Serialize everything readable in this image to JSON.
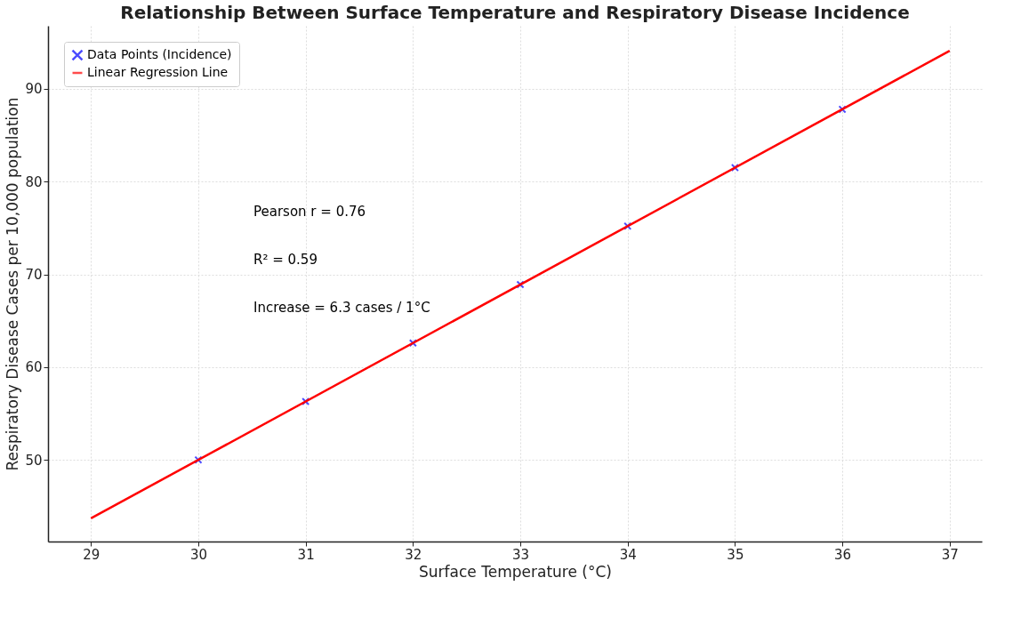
{
  "chart_data": {
    "type": "scatter",
    "title": "Relationship Between Surface Temperature and Respiratory Disease Incidence",
    "xlabel": "Surface Temperature (°C)",
    "ylabel": "Respiratory Disease Cases per 10,000 population",
    "x": [
      30,
      31,
      32,
      33,
      34,
      35,
      36
    ],
    "series": [
      {
        "name": "Data Points (Incidence)",
        "color": "#0000ff",
        "marker": "cross",
        "values": [
          50.0,
          56.3,
          62.6,
          68.9,
          75.2,
          81.5,
          87.8
        ]
      },
      {
        "name": "Linear Regression Line",
        "type": "line",
        "color": "#ff0000",
        "line_style": "solid",
        "x": [
          29,
          37
        ],
        "values": [
          43.7,
          94.1
        ]
      }
    ],
    "annotations": [
      "Pearson r = 0.76",
      "R² = 0.59",
      "Increase = 6.3 cases / 1°C"
    ],
    "xlim": [
      28.6,
      37.3
    ],
    "xticks": [
      29,
      30,
      31,
      32,
      33,
      34,
      35,
      36,
      37
    ],
    "ylim": [
      41.2,
      96.8
    ],
    "yticks": [
      50,
      60,
      70,
      80,
      90
    ],
    "grid": true,
    "legend": "top left"
  }
}
